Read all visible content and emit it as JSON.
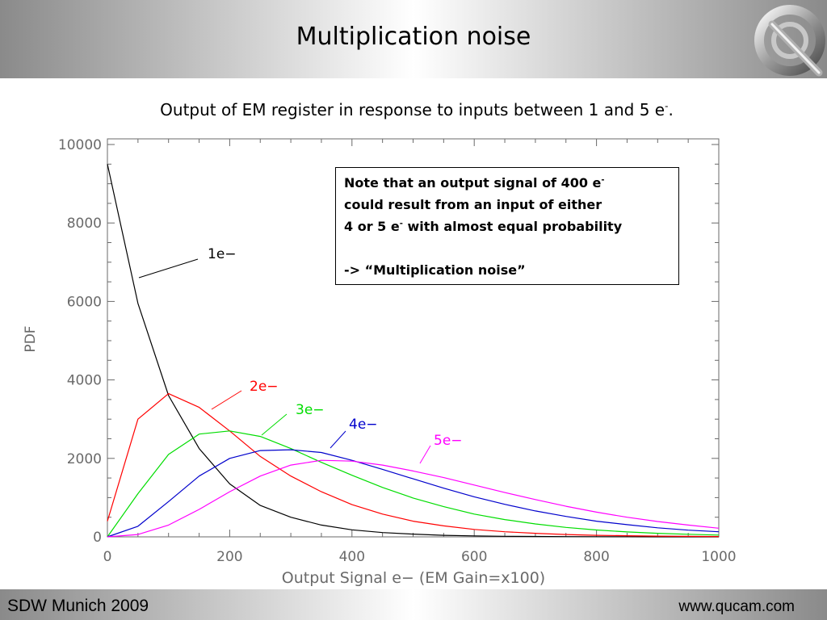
{
  "slide": {
    "title": "Multiplication noise",
    "subtitle_main": "Output of EM register in response to inputs between 1 and 5 e",
    "subtitle_sup": "-",
    "subtitle_end": "."
  },
  "note": {
    "line1": "Note that an output signal of 400 e",
    "line1_sup": "-",
    "line2": "could result from an input of either",
    "line3a": "4 or 5 e",
    "line3_sup": "-",
    "line3b": " with almost equal probability",
    "line4": "-> “Multiplication noise”"
  },
  "footer": {
    "left": "SDW Munich 2009",
    "right": "www.qucam.com"
  },
  "colors": {
    "1e": "#000000",
    "2e": "#ff0000",
    "3e": "#00dd00",
    "4e": "#0000cc",
    "5e": "#ff00ff",
    "axis": "#6a6a6a"
  },
  "chart_data": {
    "type": "line",
    "xlabel": "Output Signal  e− (EM Gain=x100)",
    "ylabel": "PDF",
    "xlim": [
      0,
      1000
    ],
    "ylim": [
      0,
      10000
    ],
    "xticks": [
      "0",
      "200",
      "400",
      "600",
      "800",
      "1000"
    ],
    "yticks": [
      "0",
      "2000",
      "4000",
      "6000",
      "8000",
      "10000"
    ],
    "x": [
      0,
      50,
      100,
      150,
      200,
      250,
      300,
      350,
      400,
      450,
      500,
      550,
      600,
      650,
      700,
      750,
      800,
      850,
      900,
      950,
      1000
    ],
    "series": [
      {
        "name": "1e−",
        "color": "#000000",
        "values": [
          9500,
          5950,
          3600,
          2250,
          1350,
          800,
          500,
          300,
          180,
          110,
          70,
          40,
          25,
          15,
          10,
          6,
          4,
          2,
          1,
          1,
          0
        ]
      },
      {
        "name": "2e−",
        "color": "#ff0000",
        "values": [
          400,
          3000,
          3650,
          3300,
          2700,
          2050,
          1550,
          1150,
          820,
          580,
          400,
          280,
          190,
          130,
          90,
          60,
          40,
          28,
          18,
          12,
          8
        ]
      },
      {
        "name": "3e−",
        "color": "#00dd00",
        "values": [
          0,
          1100,
          2100,
          2620,
          2700,
          2560,
          2250,
          1900,
          1570,
          1260,
          990,
          770,
          580,
          440,
          330,
          240,
          175,
          125,
          90,
          65,
          45
        ]
      },
      {
        "name": "4e−",
        "color": "#0000cc",
        "values": [
          0,
          270,
          900,
          1550,
          2000,
          2200,
          2220,
          2150,
          1950,
          1720,
          1480,
          1240,
          1020,
          830,
          660,
          520,
          400,
          310,
          230,
          170,
          130
        ]
      },
      {
        "name": "5e−",
        "color": "#ff00ff",
        "values": [
          0,
          60,
          300,
          700,
          1150,
          1550,
          1830,
          1950,
          1930,
          1830,
          1680,
          1510,
          1320,
          1130,
          950,
          780,
          630,
          500,
          390,
          300,
          220
        ]
      }
    ]
  }
}
